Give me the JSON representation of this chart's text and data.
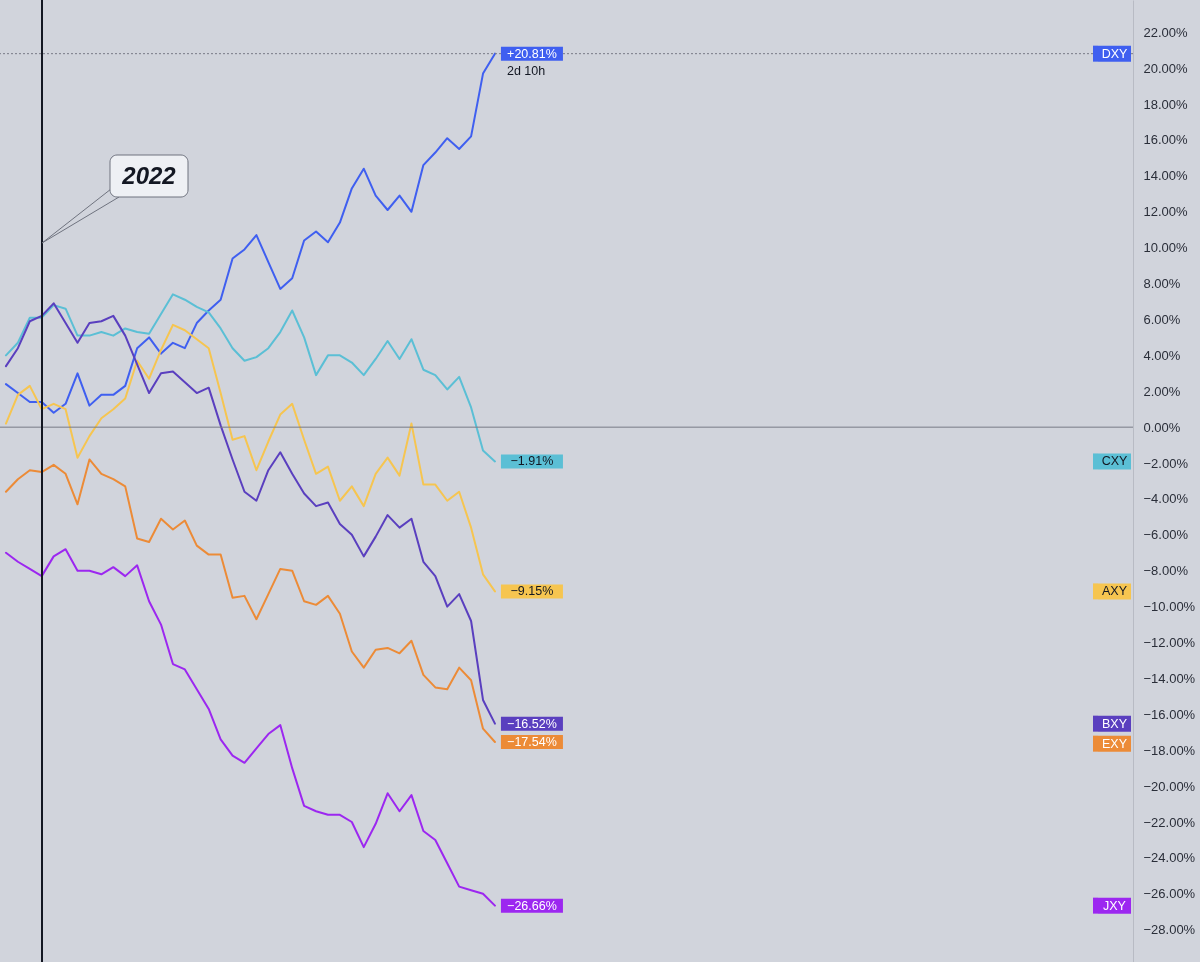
{
  "chart_data": {
    "type": "line",
    "categories": [
      null,
      null,
      null,
      null,
      null,
      null,
      null,
      null,
      null,
      null,
      null,
      null,
      null,
      null,
      null,
      null,
      null,
      null,
      null,
      null,
      null,
      null,
      null,
      null,
      null,
      null,
      null,
      null,
      null,
      null,
      null,
      null,
      null,
      null,
      null,
      null,
      null,
      null,
      null,
      null,
      null,
      null,
      null,
      null,
      null,
      null,
      null,
      null,
      null,
      null,
      null,
      null,
      null,
      null,
      null,
      null,
      null,
      null,
      null,
      null,
      null,
      null,
      null,
      null,
      null,
      null,
      null,
      null,
      null,
      null,
      null,
      null,
      null,
      null,
      null,
      null,
      null,
      null,
      null,
      null,
      null,
      null,
      null,
      null,
      null,
      null,
      null,
      null,
      null,
      null,
      null,
      null,
      null,
      null,
      null
    ],
    "series": [
      {
        "name": "DXY",
        "color": "#3f5ff0",
        "values": [
          2.4,
          1.9,
          1.4,
          1.4,
          0.8,
          1.3,
          3.0,
          1.2,
          1.8,
          1.8,
          2.3,
          4.4,
          5.0,
          4.1,
          4.7,
          4.4,
          5.8,
          6.5,
          7.1,
          9.4,
          9.9,
          10.7,
          9.2,
          7.7,
          8.3,
          10.4,
          10.9,
          10.3,
          11.4,
          13.3,
          14.4,
          12.9,
          12.1,
          12.9,
          12.0,
          14.6,
          15.3,
          16.1,
          15.5,
          16.2,
          19.7,
          20.81,
          null,
          null,
          null,
          null,
          null,
          null,
          null,
          null,
          null,
          null,
          null,
          null,
          null,
          null,
          null,
          null,
          null,
          null,
          null,
          null,
          null,
          null,
          null,
          null,
          null,
          null,
          null,
          null,
          null,
          null,
          null,
          null,
          null,
          null,
          null,
          null,
          null,
          null,
          null,
          null,
          null,
          null,
          null,
          null,
          null,
          null,
          null,
          null,
          null,
          null,
          null,
          null,
          null
        ],
        "value_labels": [
          null,
          null,
          null,
          null,
          null,
          null,
          null,
          null,
          null,
          null,
          null,
          null,
          null,
          null,
          null,
          null,
          null,
          null,
          null,
          null,
          null,
          null,
          null,
          null,
          null,
          null,
          null,
          null,
          null,
          null,
          null,
          null,
          null,
          null,
          null,
          null,
          null,
          null,
          null,
          null,
          null,
          "+20.81%",
          null,
          null,
          null,
          null,
          null,
          null,
          null,
          null,
          null,
          null,
          null,
          null,
          null,
          null,
          null,
          null,
          null,
          null,
          null,
          null,
          null,
          null,
          null,
          null,
          null,
          null,
          null,
          null,
          null,
          null,
          null,
          null,
          null,
          null,
          null,
          null,
          null,
          null,
          null,
          null,
          null,
          null,
          null,
          null,
          null,
          null,
          null,
          null,
          null,
          null,
          null,
          null,
          null
        ]
      },
      {
        "name": "CXY",
        "color": "#5bbfd5",
        "values": [
          4.0,
          4.7,
          6.1,
          6.1,
          6.8,
          6.6,
          5.1,
          5.1,
          5.3,
          5.1,
          5.5,
          5.3,
          5.2,
          6.3,
          7.4,
          7.1,
          6.7,
          6.4,
          5.5,
          4.4,
          3.7,
          3.9,
          4.4,
          5.3,
          6.5,
          5.0,
          2.9,
          4.0,
          4.0,
          3.6,
          2.9,
          3.8,
          4.8,
          3.8,
          4.9,
          3.2,
          2.9,
          2.1,
          2.8,
          1.1,
          -1.3,
          -1.91,
          null,
          null,
          null,
          null,
          null,
          null,
          null,
          null,
          null,
          null,
          null,
          null,
          null,
          null,
          null,
          null,
          null,
          null,
          null,
          null,
          null,
          null,
          null,
          null,
          null,
          null,
          null,
          null,
          null,
          null,
          null,
          null,
          null,
          null,
          null,
          null,
          null,
          null,
          null,
          null,
          null,
          null,
          null,
          null,
          null,
          null,
          null,
          null,
          null,
          null,
          null,
          null,
          null
        ],
        "value_labels": [
          null,
          null,
          null,
          null,
          null,
          null,
          null,
          null,
          null,
          null,
          null,
          null,
          null,
          null,
          null,
          null,
          null,
          null,
          null,
          null,
          null,
          null,
          null,
          null,
          null,
          null,
          null,
          null,
          null,
          null,
          null,
          null,
          null,
          null,
          null,
          null,
          null,
          null,
          null,
          null,
          null,
          "−1.91%",
          null,
          null,
          null,
          null,
          null,
          null,
          null,
          null,
          null,
          null,
          null,
          null,
          null,
          null,
          null,
          null,
          null,
          null,
          null,
          null,
          null,
          null,
          null,
          null,
          null,
          null,
          null,
          null,
          null,
          null,
          null,
          null,
          null,
          null,
          null,
          null,
          null,
          null,
          null,
          null,
          null,
          null,
          null,
          null,
          null,
          null,
          null,
          null,
          null,
          null,
          null,
          null,
          null
        ]
      },
      {
        "name": "AXY",
        "color": "#f6c550",
        "values": [
          0.2,
          1.8,
          2.3,
          1.0,
          1.3,
          1.0,
          -1.7,
          -0.5,
          0.5,
          1.0,
          1.6,
          3.7,
          2.7,
          4.3,
          5.7,
          5.4,
          4.9,
          4.4,
          1.9,
          -0.7,
          -0.5,
          -2.4,
          -0.8,
          0.7,
          1.3,
          -0.7,
          -2.6,
          -2.2,
          -4.1,
          -3.3,
          -4.4,
          -2.6,
          -1.7,
          -2.7,
          0.2,
          -3.2,
          -3.2,
          -4.1,
          -3.6,
          -5.6,
          -8.2,
          -9.15,
          null,
          null,
          null,
          null,
          null,
          null,
          null,
          null,
          null,
          null,
          null,
          null,
          null,
          null,
          null,
          null,
          null,
          null,
          null,
          null,
          null,
          null,
          null,
          null,
          null,
          null,
          null,
          null,
          null,
          null,
          null,
          null,
          null,
          null,
          null,
          null,
          null,
          null,
          null,
          null,
          null,
          null,
          null,
          null,
          null,
          null,
          null,
          null,
          null,
          null,
          null,
          null,
          null
        ],
        "value_labels": [
          null,
          null,
          null,
          null,
          null,
          null,
          null,
          null,
          null,
          null,
          null,
          null,
          null,
          null,
          null,
          null,
          null,
          null,
          null,
          null,
          null,
          null,
          null,
          null,
          null,
          null,
          null,
          null,
          null,
          null,
          null,
          null,
          null,
          null,
          null,
          null,
          null,
          null,
          null,
          null,
          null,
          "−9.15%",
          null,
          null,
          null,
          null,
          null,
          null,
          null,
          null,
          null,
          null,
          null,
          null,
          null,
          null,
          null,
          null,
          null,
          null,
          null,
          null,
          null,
          null,
          null,
          null,
          null,
          null,
          null,
          null,
          null,
          null,
          null,
          null,
          null,
          null,
          null,
          null,
          null,
          null,
          null,
          null,
          null,
          null,
          null,
          null,
          null,
          null,
          null,
          null,
          null,
          null,
          null,
          null,
          null
        ]
      },
      {
        "name": "BXY",
        "color": "#5a3fbf",
        "values": [
          3.4,
          4.4,
          5.9,
          6.2,
          6.9,
          5.8,
          4.7,
          5.8,
          5.9,
          6.2,
          5.1,
          3.5,
          1.9,
          3.0,
          3.1,
          2.5,
          1.9,
          2.2,
          0.1,
          -1.8,
          -3.6,
          -4.1,
          -2.4,
          -1.4,
          -2.6,
          -3.7,
          -4.4,
          -4.2,
          -5.4,
          -6.0,
          -7.2,
          -6.1,
          -4.9,
          -5.6,
          -5.1,
          -7.5,
          -8.3,
          -10.0,
          -9.3,
          -10.8,
          -15.2,
          -16.52,
          null,
          null,
          null,
          null,
          null,
          null,
          null,
          null,
          null,
          null,
          null,
          null,
          null,
          null,
          null,
          null,
          null,
          null,
          null,
          null,
          null,
          null,
          null,
          null,
          null,
          null,
          null,
          null,
          null,
          null,
          null,
          null,
          null,
          null,
          null,
          null,
          null,
          null,
          null,
          null,
          null,
          null,
          null,
          null,
          null,
          null,
          null,
          null,
          null,
          null,
          null,
          null,
          null
        ],
        "value_labels": [
          null,
          null,
          null,
          null,
          null,
          null,
          null,
          null,
          null,
          null,
          null,
          null,
          null,
          null,
          null,
          null,
          null,
          null,
          null,
          null,
          null,
          null,
          null,
          null,
          null,
          null,
          null,
          null,
          null,
          null,
          null,
          null,
          null,
          null,
          null,
          null,
          null,
          null,
          null,
          null,
          null,
          "−16.52%",
          null,
          null,
          null,
          null,
          null,
          null,
          null,
          null,
          null,
          null,
          null,
          null,
          null,
          null,
          null,
          null,
          null,
          null,
          null,
          null,
          null,
          null,
          null,
          null,
          null,
          null,
          null,
          null,
          null,
          null,
          null,
          null,
          null,
          null,
          null,
          null,
          null,
          null,
          null,
          null,
          null,
          null,
          null,
          null,
          null,
          null,
          null,
          null,
          null,
          null,
          null,
          null,
          null
        ]
      },
      {
        "name": "EXY",
        "color": "#ec8b37",
        "values": [
          -3.6,
          -2.9,
          -2.4,
          -2.5,
          -2.1,
          -2.6,
          -4.3,
          -1.8,
          -2.6,
          -2.9,
          -3.3,
          -6.2,
          -6.4,
          -5.1,
          -5.7,
          -5.2,
          -6.6,
          -7.1,
          -7.1,
          -9.5,
          -9.4,
          -10.7,
          -9.3,
          -7.9,
          -8.0,
          -9.7,
          -9.9,
          -9.4,
          -10.4,
          -12.5,
          -13.4,
          -12.4,
          -12.3,
          -12.6,
          -11.9,
          -13.8,
          -14.5,
          -14.6,
          -13.4,
          -14.1,
          -16.8,
          -17.54,
          null,
          null,
          null,
          null,
          null,
          null,
          null,
          null,
          null,
          null,
          null,
          null,
          null,
          null,
          null,
          null,
          null,
          null,
          null,
          null,
          null,
          null,
          null,
          null,
          null,
          null,
          null,
          null,
          null,
          null,
          null,
          null,
          null,
          null,
          null,
          null,
          null,
          null,
          null,
          null,
          null,
          null,
          null,
          null,
          null,
          null,
          null,
          null,
          null,
          null,
          null,
          null,
          null
        ],
        "value_labels": [
          null,
          null,
          null,
          null,
          null,
          null,
          null,
          null,
          null,
          null,
          null,
          null,
          null,
          null,
          null,
          null,
          null,
          null,
          null,
          null,
          null,
          null,
          null,
          null,
          null,
          null,
          null,
          null,
          null,
          null,
          null,
          null,
          null,
          null,
          null,
          null,
          null,
          null,
          null,
          null,
          null,
          "−17.54%",
          null,
          null,
          null,
          null,
          null,
          null,
          null,
          null,
          null,
          null,
          null,
          null,
          null,
          null,
          null,
          null,
          null,
          null,
          null,
          null,
          null,
          null,
          null,
          null,
          null,
          null,
          null,
          null,
          null,
          null,
          null,
          null,
          null,
          null,
          null,
          null,
          null,
          null,
          null,
          null,
          null,
          null,
          null,
          null,
          null,
          null,
          null,
          null,
          null,
          null,
          null,
          null,
          null
        ]
      },
      {
        "name": "JXY",
        "color": "#9c27f0",
        "values": [
          -7.0,
          -7.5,
          -7.9,
          -8.3,
          -7.2,
          -6.8,
          -8.0,
          -8.0,
          -8.2,
          -7.8,
          -8.3,
          -7.7,
          -9.7,
          -11.0,
          -13.2,
          -13.5,
          -14.6,
          -15.7,
          -17.4,
          -18.3,
          -18.7,
          -17.9,
          -17.1,
          -16.6,
          -19.0,
          -21.1,
          -21.4,
          -21.6,
          -21.6,
          -22.0,
          -23.4,
          -22.1,
          -20.4,
          -21.4,
          -20.5,
          -22.5,
          -23.0,
          -24.3,
          -25.6,
          -25.8,
          -26.0,
          -26.66,
          null,
          null,
          null,
          null,
          null,
          null,
          null,
          null,
          null,
          null,
          null,
          null,
          null,
          null,
          null,
          null,
          null,
          null,
          null,
          null,
          null,
          null,
          null,
          null,
          null,
          null,
          null,
          null,
          null,
          null,
          null,
          null,
          null,
          null,
          null,
          null,
          null,
          null,
          null,
          null,
          null,
          null,
          null,
          null,
          null,
          null,
          null,
          null,
          null,
          null,
          null,
          null,
          null
        ],
        "value_labels": [
          null,
          null,
          null,
          null,
          null,
          null,
          null,
          null,
          null,
          null,
          null,
          null,
          null,
          null,
          null,
          null,
          null,
          null,
          null,
          null,
          null,
          null,
          null,
          null,
          null,
          null,
          null,
          null,
          null,
          null,
          null,
          null,
          null,
          null,
          null,
          null,
          null,
          null,
          null,
          null,
          null,
          "−26.66%",
          null,
          null,
          null,
          null,
          null,
          null,
          null,
          null,
          null,
          null,
          null,
          null,
          null,
          null,
          null,
          null,
          null,
          null,
          null,
          null,
          null,
          null,
          null,
          null,
          null,
          null,
          null,
          null,
          null,
          null,
          null,
          null,
          null,
          null,
          null,
          null,
          null,
          null,
          null,
          null,
          null,
          null,
          null,
          null,
          null,
          null,
          null,
          null,
          null,
          null,
          null,
          null,
          null
        ]
      }
    ],
    "ylim": [
      -29.8,
      23.8
    ],
    "yticks": [
      {
        "value": -28,
        "label": "−28.00%"
      },
      {
        "value": -26,
        "label": "−26.00%"
      },
      {
        "value": -24,
        "label": "−24.00%"
      },
      {
        "value": -22,
        "label": "−22.00%"
      },
      {
        "value": -20,
        "label": "−20.00%"
      },
      {
        "value": -18,
        "label": "−18.00%"
      },
      {
        "value": -16,
        "label": "−16.00%"
      },
      {
        "value": -14,
        "label": "−14.00%"
      },
      {
        "value": -12,
        "label": "−12.00%"
      },
      {
        "value": -10,
        "label": "−10.00%"
      },
      {
        "value": -8,
        "label": "−8.00%"
      },
      {
        "value": -6,
        "label": "−6.00%"
      },
      {
        "value": -4,
        "label": "−4.00%"
      },
      {
        "value": -2,
        "label": "−2.00%"
      },
      {
        "value": 0,
        "label": "0.00%"
      },
      {
        "value": 2,
        "label": "2.00%"
      },
      {
        "value": 4,
        "label": "4.00%"
      },
      {
        "value": 6,
        "label": "6.00%"
      },
      {
        "value": 8,
        "label": "8.00%"
      },
      {
        "value": 10,
        "label": "10.00%"
      },
      {
        "value": 12,
        "label": "12.00%"
      },
      {
        "value": 14,
        "label": "14.00%"
      },
      {
        "value": 16,
        "label": "16.00%"
      },
      {
        "value": 18,
        "label": "18.00%"
      },
      {
        "value": 20,
        "label": "20.00%"
      },
      {
        "value": 22,
        "label": "22.00%"
      }
    ],
    "ref_lines": [
      {
        "axis": "y",
        "value": 0,
        "color": "#787b86"
      },
      {
        "axis": "y",
        "value": 20.81,
        "color": "#787b86",
        "line_style": "dotted"
      }
    ],
    "annotations": [
      "2022",
      {
        "text": "2d 10h",
        "y": 20.81
      }
    ],
    "legend": "right",
    "tick_labels": "y"
  }
}
